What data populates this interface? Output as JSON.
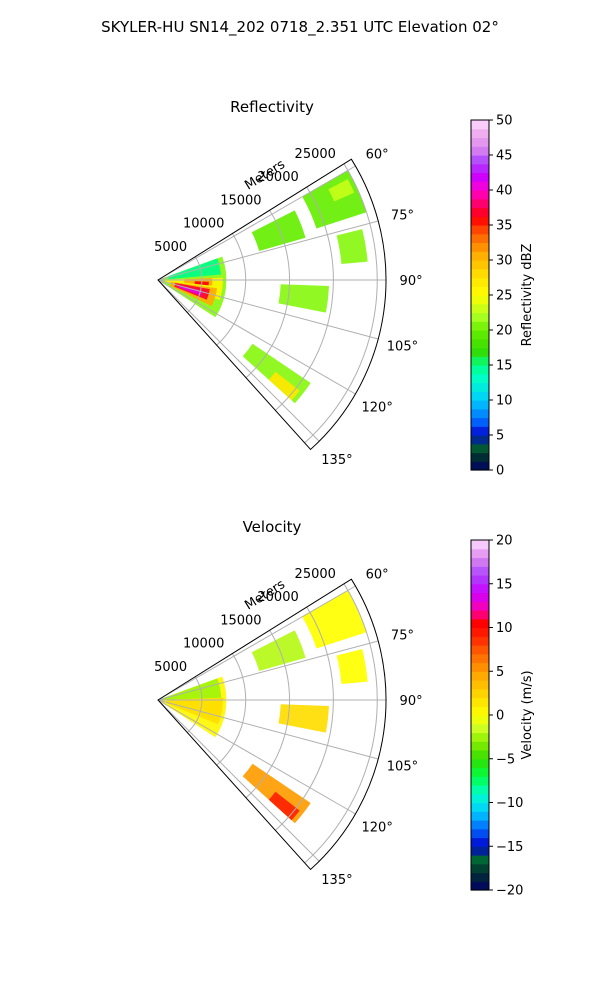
{
  "figure": {
    "suptitle": "SKYLER-HU  SN14_202  0718_2.351 UTC Elevation 02°"
  },
  "chart_data": [
    {
      "type": "heatmap",
      "title": "Reflectivity",
      "radial_axis_label": "Meters",
      "radial_ticks": [
        "5000",
        "10000",
        "15000",
        "20000",
        "25000"
      ],
      "radial_tick_values": [
        5000,
        10000,
        15000,
        20000,
        25000
      ],
      "r_max": 26000,
      "angle_ticks": [
        "60°",
        "75°",
        "90°",
        "105°",
        "120°",
        "135°"
      ],
      "angle_tick_values": [
        60,
        75,
        90,
        105,
        120,
        135
      ],
      "angle_range": [
        58,
        138
      ],
      "grid": true,
      "colorbar": {
        "label": "Reflectivity dBZ",
        "ticks": [
          "0",
          "5",
          "10",
          "15",
          "20",
          "25",
          "30",
          "35",
          "40",
          "45",
          "50"
        ],
        "range": [
          0,
          50
        ],
        "stops": [
          {
            "v": 0,
            "c": "#000066"
          },
          {
            "v": 2,
            "c": "#003030"
          },
          {
            "v": 3.5,
            "c": "#006633"
          },
          {
            "v": 5,
            "c": "#0000cc"
          },
          {
            "v": 7,
            "c": "#0066ff"
          },
          {
            "v": 10,
            "c": "#00ccff"
          },
          {
            "v": 13,
            "c": "#00ffcc"
          },
          {
            "v": 15,
            "c": "#00ff88"
          },
          {
            "v": 17,
            "c": "#33dd00"
          },
          {
            "v": 20,
            "c": "#66ee00"
          },
          {
            "v": 22,
            "c": "#aaff22"
          },
          {
            "v": 25,
            "c": "#ffff00"
          },
          {
            "v": 28,
            "c": "#ffdd00"
          },
          {
            "v": 31,
            "c": "#ffaa00"
          },
          {
            "v": 34,
            "c": "#ff5500"
          },
          {
            "v": 36,
            "c": "#ff0000"
          },
          {
            "v": 38,
            "c": "#ff0066"
          },
          {
            "v": 40,
            "c": "#ff00cc"
          },
          {
            "v": 42,
            "c": "#cc00ff"
          },
          {
            "v": 44,
            "c": "#aa44ff"
          },
          {
            "v": 46,
            "c": "#dd88ee"
          },
          {
            "v": 48,
            "c": "#eeaaee"
          },
          {
            "v": 50,
            "c": "#ffddff"
          }
        ]
      },
      "regions": [
        {
          "az": [
            70,
            123
          ],
          "r": [
            0,
            7800
          ],
          "v": 21
        },
        {
          "az": [
            70,
            85
          ],
          "r": [
            1200,
            7200
          ],
          "v": 15
        },
        {
          "az": [
            88,
            108
          ],
          "r": [
            800,
            7400
          ],
          "v": 26
        },
        {
          "az": [
            98,
            116
          ],
          "r": [
            1500,
            6800
          ],
          "v": 31
        },
        {
          "az": [
            100,
            112
          ],
          "r": [
            2000,
            6000
          ],
          "v": 37
        },
        {
          "az": [
            104,
            110
          ],
          "r": [
            2500,
            5200
          ],
          "v": 41
        },
        {
          "az": [
            88,
            96
          ],
          "r": [
            3000,
            6200
          ],
          "v": 31
        },
        {
          "az": [
            92,
            96
          ],
          "r": [
            4200,
            5800
          ],
          "v": 36
        },
        {
          "az": [
            60,
            72
          ],
          "r": [
            19000,
            25000
          ],
          "v": 20
        },
        {
          "az": [
            62,
            66
          ],
          "r": [
            22000,
            24500
          ],
          "v": 23
        },
        {
          "az": [
            63,
            74
          ],
          "r": [
            12000,
            17500
          ],
          "v": 20
        },
        {
          "az": [
            124,
            132
          ],
          "r": [
            13000,
            21000
          ],
          "v": 21
        },
        {
          "az": [
            128,
            132
          ],
          "r": [
            17000,
            20500
          ],
          "v": 27
        },
        {
          "az": [
            92,
            101
          ],
          "r": [
            14000,
            19500
          ],
          "v": 21
        },
        {
          "az": [
            76,
            85
          ],
          "r": [
            21000,
            24000
          ],
          "v": 21
        }
      ]
    },
    {
      "type": "heatmap",
      "title": "Velocity",
      "radial_axis_label": "Meters",
      "radial_ticks": [
        "5000",
        "10000",
        "15000",
        "20000",
        "25000"
      ],
      "radial_tick_values": [
        5000,
        10000,
        15000,
        20000,
        25000
      ],
      "r_max": 26000,
      "angle_ticks": [
        "60°",
        "75°",
        "90°",
        "105°",
        "120°",
        "135°"
      ],
      "angle_tick_values": [
        60,
        75,
        90,
        105,
        120,
        135
      ],
      "angle_range": [
        58,
        138
      ],
      "grid": true,
      "colorbar": {
        "label": "Velocity (m/s)",
        "ticks": [
          "−20",
          "−15",
          "−10",
          "−5",
          "0",
          "5",
          "10",
          "15",
          "20"
        ],
        "range": [
          -20,
          20
        ],
        "stops": [
          {
            "v": -20,
            "c": "#000066"
          },
          {
            "v": -18,
            "c": "#003030"
          },
          {
            "v": -16.5,
            "c": "#006633"
          },
          {
            "v": -15,
            "c": "#0000cc"
          },
          {
            "v": -13,
            "c": "#0066ff"
          },
          {
            "v": -11,
            "c": "#00ccff"
          },
          {
            "v": -9,
            "c": "#00ffcc"
          },
          {
            "v": -7,
            "c": "#00ff44"
          },
          {
            "v": -5,
            "c": "#33dd00"
          },
          {
            "v": -3,
            "c": "#88ee00"
          },
          {
            "v": -1.5,
            "c": "#ccff22"
          },
          {
            "v": 0,
            "c": "#ffff00"
          },
          {
            "v": 2,
            "c": "#ffdd00"
          },
          {
            "v": 4.5,
            "c": "#ffaa00"
          },
          {
            "v": 7,
            "c": "#ff6600"
          },
          {
            "v": 9,
            "c": "#ff2200"
          },
          {
            "v": 10.5,
            "c": "#ff0000"
          },
          {
            "v": 12,
            "c": "#ff00aa"
          },
          {
            "v": 14,
            "c": "#cc00ff"
          },
          {
            "v": 16,
            "c": "#aa44ff"
          },
          {
            "v": 18,
            "c": "#dd88ee"
          },
          {
            "v": 20,
            "c": "#ffddff"
          }
        ]
      },
      "regions": [
        {
          "az": [
            70,
            123
          ],
          "r": [
            0,
            7800
          ],
          "v": 0.5
        },
        {
          "az": [
            70,
            88
          ],
          "r": [
            0,
            7200
          ],
          "v": -2.5
        },
        {
          "az": [
            88,
            112
          ],
          "r": [
            1000,
            7400
          ],
          "v": 2
        },
        {
          "az": [
            60,
            72
          ],
          "r": [
            19000,
            25000
          ],
          "v": 0
        },
        {
          "az": [
            63,
            74
          ],
          "r": [
            12000,
            17500
          ],
          "v": -2
        },
        {
          "az": [
            124,
            132
          ],
          "r": [
            13000,
            21000
          ],
          "v": 5
        },
        {
          "az": [
            128,
            132
          ],
          "r": [
            17000,
            20500
          ],
          "v": 9
        },
        {
          "az": [
            92,
            101
          ],
          "r": [
            14000,
            19500
          ],
          "v": 2
        },
        {
          "az": [
            76,
            85
          ],
          "r": [
            21000,
            24000
          ],
          "v": 0
        }
      ]
    }
  ]
}
